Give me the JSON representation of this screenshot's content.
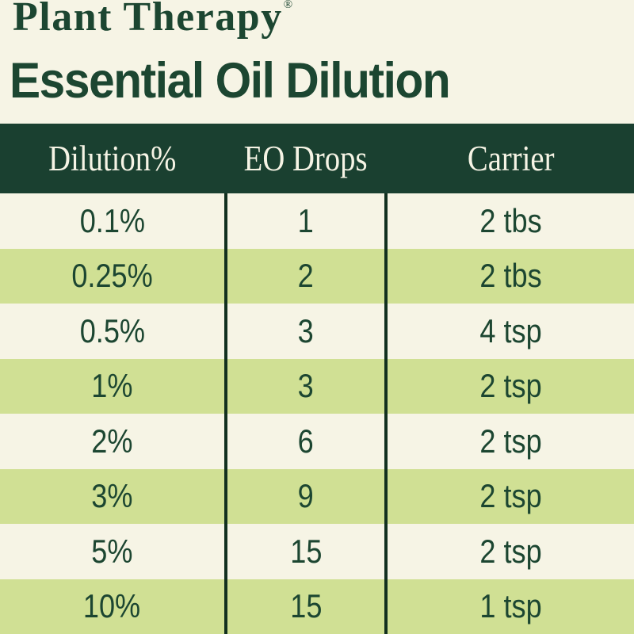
{
  "brand": {
    "name": "Plant Therapy",
    "registered_mark": "®"
  },
  "title": "Essential Oil Dilution",
  "colors": {
    "background": "#f6f4e5",
    "green": "#1c4631",
    "bar": "#1a4030",
    "row_green": "#d0e094",
    "divider": "#12301f",
    "header_text": "#f6f4e5"
  },
  "table": {
    "columns": [
      "Dilution%",
      "EO Drops",
      "Carrier"
    ],
    "rows": [
      [
        "0.1%",
        "1",
        "2 tbs"
      ],
      [
        "0.25%",
        "2",
        "2 tbs"
      ],
      [
        "0.5%",
        "3",
        "4 tsp"
      ],
      [
        "1%",
        "3",
        "2 tsp"
      ],
      [
        "2%",
        "6",
        "2 tsp"
      ],
      [
        "3%",
        "9",
        "2 tsp"
      ],
      [
        "5%",
        "15",
        "2 tsp"
      ],
      [
        "10%",
        "15",
        "1 tsp"
      ]
    ]
  },
  "chart_data": {
    "type": "table",
    "title": "Essential Oil Dilution",
    "columns": [
      "Dilution%",
      "EO Drops",
      "Carrier"
    ],
    "rows": [
      [
        "0.1%",
        "1",
        "2 tbs"
      ],
      [
        "0.25%",
        "2",
        "2 tbs"
      ],
      [
        "0.5%",
        "3",
        "4 tsp"
      ],
      [
        "1%",
        "3",
        "2 tsp"
      ],
      [
        "2%",
        "6",
        "2 tsp"
      ],
      [
        "3%",
        "9",
        "2 tsp"
      ],
      [
        "5%",
        "15",
        "2 tsp"
      ],
      [
        "10%",
        "15",
        "1 tsp"
      ]
    ]
  }
}
